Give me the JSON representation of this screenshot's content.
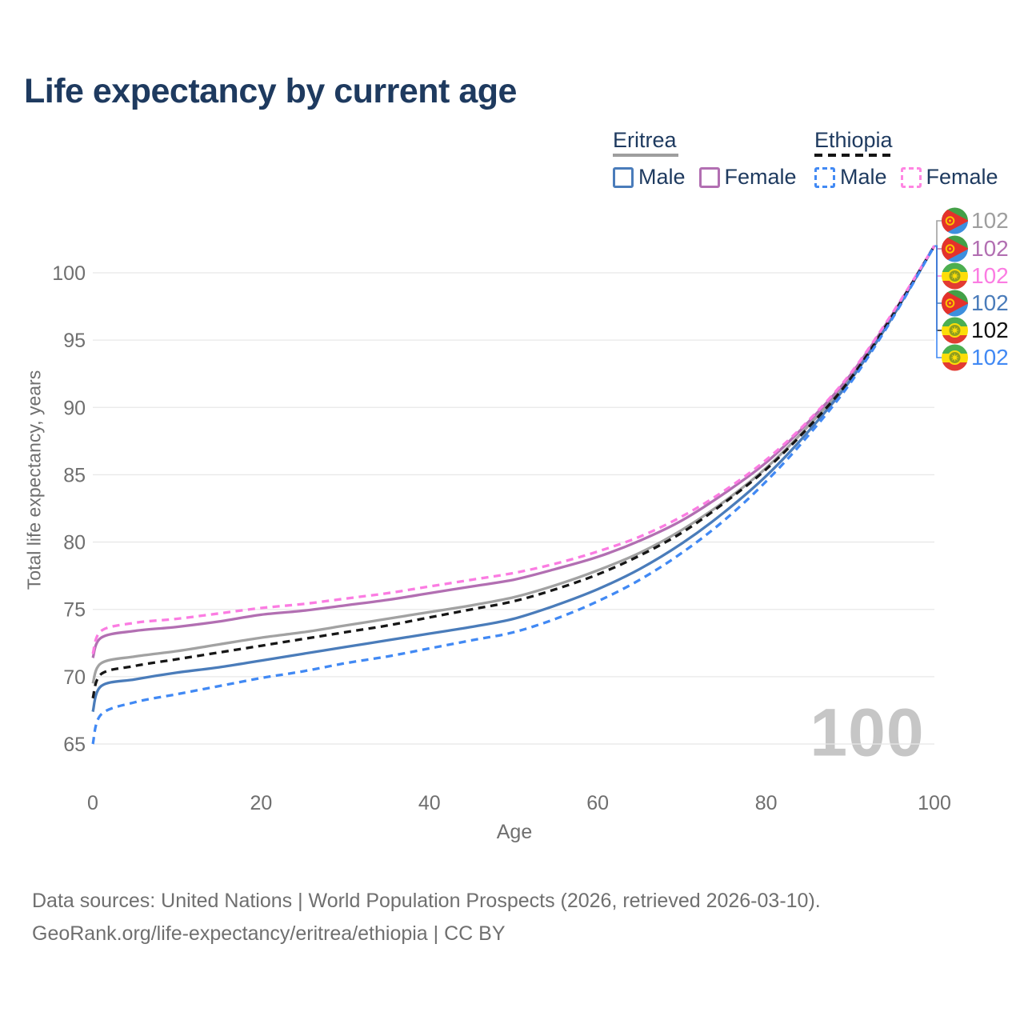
{
  "title": "Life expectancy by current age",
  "legend": {
    "groups": [
      {
        "country": "Eritrea",
        "line_style": "solid",
        "underline_color": "#9e9e9e",
        "items": [
          {
            "label": "Male",
            "color": "#4a7cba",
            "dashed": false
          },
          {
            "label": "Female",
            "color": "#b26fb2",
            "dashed": false
          }
        ]
      },
      {
        "country": "Ethiopia",
        "line_style": "dashed",
        "underline_color": "#151515",
        "items": [
          {
            "label": "Male",
            "color": "#4189f4",
            "dashed": true
          },
          {
            "label": "Female",
            "color": "#ff85e2",
            "dashed": true
          }
        ]
      }
    ]
  },
  "age_indicator": "100",
  "footer": {
    "line1": "Data sources: United Nations | World Population Prospects (2026, retrieved 2026-03-10).",
    "line2": "GeoRank.org/life-expectancy/eritrea/ethiopia | CC BY"
  },
  "chart_data": {
    "type": "line",
    "title": "Life expectancy by current age",
    "xlabel": "Age",
    "ylabel": "Total life expectancy, years",
    "xlim": [
      0,
      100
    ],
    "ylim": [
      65,
      102.5
    ],
    "x_ticks": [
      0,
      20,
      40,
      60,
      80,
      100
    ],
    "y_ticks": [
      65,
      70,
      75,
      80,
      85,
      90,
      95,
      100
    ],
    "grid": "horizontal",
    "legend_position": "top-right",
    "x": [
      0,
      1,
      5,
      10,
      15,
      20,
      25,
      30,
      35,
      40,
      45,
      50,
      55,
      60,
      65,
      70,
      75,
      80,
      85,
      90,
      95,
      100
    ],
    "series": [
      {
        "name": "Eritrea Total",
        "country": "Eritrea",
        "sex": "total",
        "color": "#a2a2a2",
        "label_color": "#9e9e9e",
        "dashed": false,
        "flag": "eritrea",
        "end_label": "102",
        "values": [
          69.5,
          71.0,
          71.5,
          71.9,
          72.4,
          72.9,
          73.3,
          73.8,
          74.3,
          74.8,
          75.3,
          75.9,
          76.8,
          77.9,
          79.2,
          80.9,
          83.0,
          85.5,
          88.6,
          92.2,
          96.8,
          102
        ]
      },
      {
        "name": "Eritrea Female",
        "country": "Eritrea",
        "sex": "female",
        "color": "#b26fb2",
        "label_color": "#b26fb2",
        "dashed": false,
        "flag": "eritrea",
        "end_label": "102",
        "values": [
          71.4,
          72.9,
          73.4,
          73.7,
          74.1,
          74.6,
          74.9,
          75.3,
          75.7,
          76.2,
          76.7,
          77.2,
          78.0,
          78.9,
          80.1,
          81.6,
          83.6,
          85.9,
          88.9,
          92.4,
          96.9,
          102
        ]
      },
      {
        "name": "Ethiopia Female",
        "country": "Ethiopia",
        "sex": "female",
        "color": "#fb7ce2",
        "label_color": "#fb7ce2",
        "dashed": true,
        "flag": "ethiopia",
        "end_label": "102",
        "values": [
          71.7,
          73.4,
          74.0,
          74.3,
          74.7,
          75.1,
          75.4,
          75.8,
          76.2,
          76.7,
          77.2,
          77.7,
          78.4,
          79.3,
          80.4,
          81.9,
          83.8,
          86.1,
          89.0,
          92.5,
          97.0,
          102
        ]
      },
      {
        "name": "Eritrea Male",
        "country": "Eritrea",
        "sex": "male",
        "color": "#4a7cba",
        "label_color": "#4a7cba",
        "dashed": false,
        "flag": "eritrea",
        "end_label": "102",
        "values": [
          67.4,
          69.3,
          69.8,
          70.3,
          70.7,
          71.2,
          71.7,
          72.2,
          72.7,
          73.2,
          73.7,
          74.3,
          75.3,
          76.5,
          78.0,
          79.9,
          82.2,
          84.9,
          88.2,
          92.0,
          96.7,
          102
        ]
      },
      {
        "name": "Ethiopia Total",
        "country": "Ethiopia",
        "sex": "total",
        "color": "#161616",
        "label_color": "#111111",
        "dashed": true,
        "flag": "ethiopia",
        "end_label": "102",
        "values": [
          68.4,
          70.2,
          70.8,
          71.3,
          71.8,
          72.3,
          72.8,
          73.3,
          73.8,
          74.4,
          75.0,
          75.6,
          76.5,
          77.6,
          79.0,
          80.7,
          82.9,
          85.4,
          88.5,
          92.1,
          96.8,
          102
        ]
      },
      {
        "name": "Ethiopia Male",
        "country": "Ethiopia",
        "sex": "male",
        "color": "#4189f4",
        "label_color": "#4189f4",
        "dashed": true,
        "flag": "ethiopia",
        "end_label": "102",
        "values": [
          65.0,
          67.2,
          68.1,
          68.7,
          69.3,
          69.9,
          70.4,
          71.0,
          71.5,
          72.1,
          72.7,
          73.3,
          74.3,
          75.6,
          77.2,
          79.2,
          81.6,
          84.5,
          87.9,
          91.8,
          96.6,
          102
        ]
      }
    ]
  }
}
